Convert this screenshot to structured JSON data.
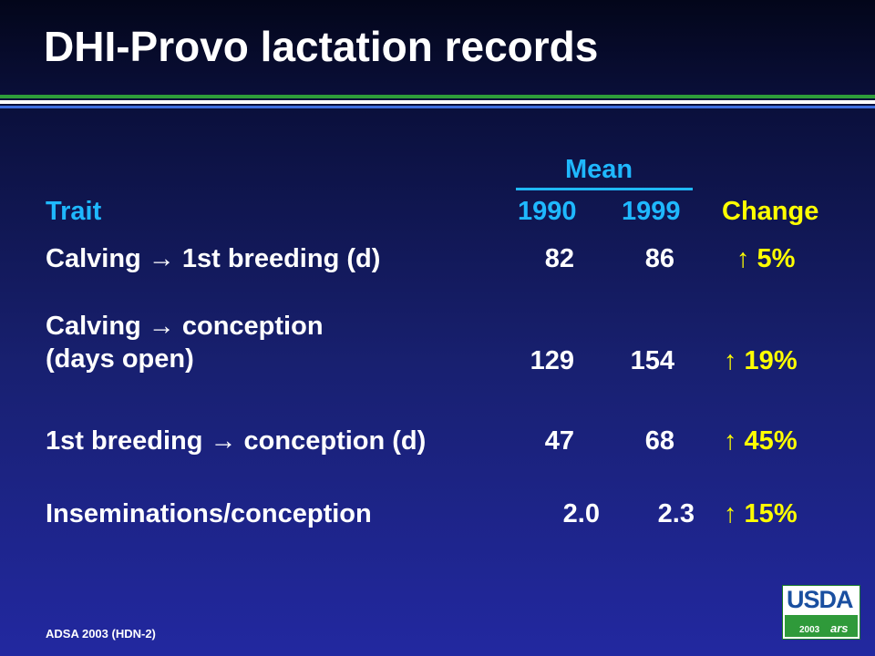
{
  "title": "DHI-Provo lactation records",
  "table": {
    "group_header": "Mean",
    "headers": {
      "trait": "Trait",
      "y1990": "1990",
      "y1999": "1999",
      "change": "Change"
    },
    "rows": [
      {
        "trait": "Calving → 1st breeding (d)",
        "y1990": "82",
        "y1999": "86",
        "change": "↑ 5%"
      },
      {
        "trait_line1": "Calving → conception",
        "trait_line2": "(days open)",
        "y1990": "129",
        "y1999": "154",
        "change": "↑ 19%"
      },
      {
        "trait": "1st breeding → conception (d)",
        "y1990": "47",
        "y1999": "68",
        "change": "↑ 45%"
      },
      {
        "trait": "Inseminations/conception",
        "y1990": "2.0",
        "y1999": "2.3",
        "change": "↑ 15%"
      }
    ]
  },
  "footer": "ADSA 2003 (HDN-2)",
  "logo": {
    "text": "USDA",
    "year": "2003",
    "sub": "ars"
  },
  "colors": {
    "header": "#1fb8ff",
    "change": "#ffff00",
    "text": "#ffffff",
    "rule_green": "#2e9e3a",
    "rule_blue": "#3f6fe0"
  }
}
